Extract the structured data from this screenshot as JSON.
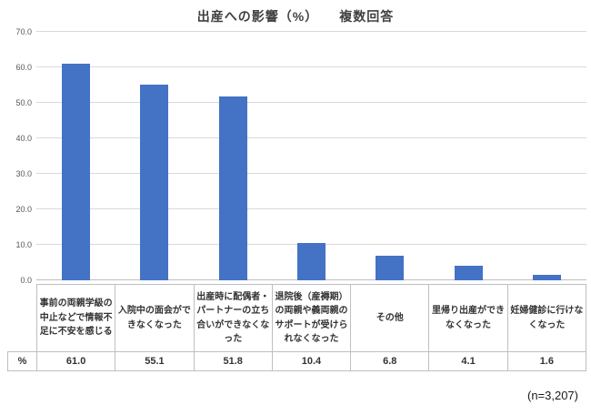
{
  "note": "(n=3,207)",
  "chart_data": {
    "type": "bar",
    "title": "出産への影響（%）　　複数回答",
    "series_name": "%",
    "categories": [
      "事前の両親学級の中止などで情報不足に不安を感じる",
      "入院中の面会ができなくなった",
      "出産時に配偶者・パートナーの立ち合いができなくなった",
      "退院後（産褥期）の両親や義両親のサポートが受けられなくなった",
      "その他",
      "里帰り出産ができなくなった",
      "妊婦健診に行けなくなった"
    ],
    "values": [
      61.0,
      55.1,
      51.8,
      10.4,
      6.8,
      4.1,
      1.6
    ],
    "ylim": [
      0,
      70
    ],
    "ytick_interval": 10,
    "bar_color": "#4472C4",
    "gridline_color": "#D9D9D9",
    "grid": true,
    "legend": "none"
  }
}
